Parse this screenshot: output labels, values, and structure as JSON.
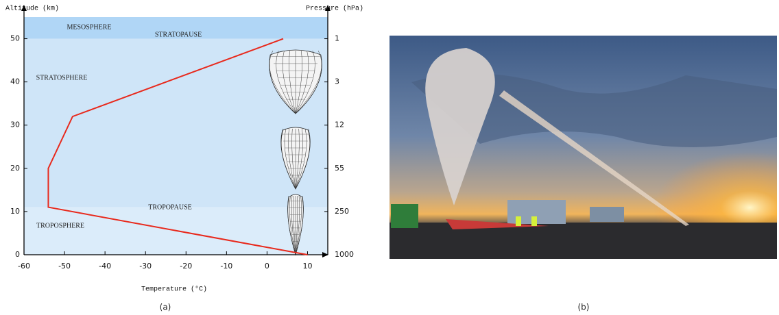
{
  "chart_data": {
    "type": "line",
    "y_label": "Altitude (km)",
    "y2_label": "Pressure (hPa)",
    "x_label": "Temperature (°C)",
    "x": [
      10,
      -54,
      -54,
      -48,
      4
    ],
    "values": [
      0,
      11,
      20,
      32,
      50
    ],
    "color": "#e8291c",
    "xlim": [
      -60,
      15
    ],
    "xticks": [
      -60,
      -50,
      -40,
      -30,
      -20,
      -10,
      0,
      10
    ],
    "ylim": [
      0,
      55
    ],
    "yticks": [
      0,
      10,
      20,
      30,
      40,
      50
    ],
    "pressure_ticks": [
      {
        "altitude": 50,
        "pressure": 1
      },
      {
        "altitude": 40,
        "pressure": 3
      },
      {
        "altitude": 30,
        "pressure": 12
      },
      {
        "altitude": 20,
        "pressure": 55
      },
      {
        "altitude": 10,
        "pressure": 250
      },
      {
        "altitude": 0,
        "pressure": 1000
      }
    ],
    "regions": [
      {
        "name": "MESOSPHERE",
        "from": 50,
        "to": 55,
        "color": "#b0d6f6"
      },
      {
        "name": "STRATOSPHERE",
        "from": 11,
        "to": 50,
        "color": "#cfe5f8"
      },
      {
        "name": "TROPOSPHERE",
        "from": 0,
        "to": 11,
        "color": "#dbecfa"
      }
    ],
    "boundaries": [
      "STRATOPAUSE",
      "TROPOPAUSE"
    ]
  },
  "captions": {
    "a": "(a)",
    "b": "(b)"
  }
}
